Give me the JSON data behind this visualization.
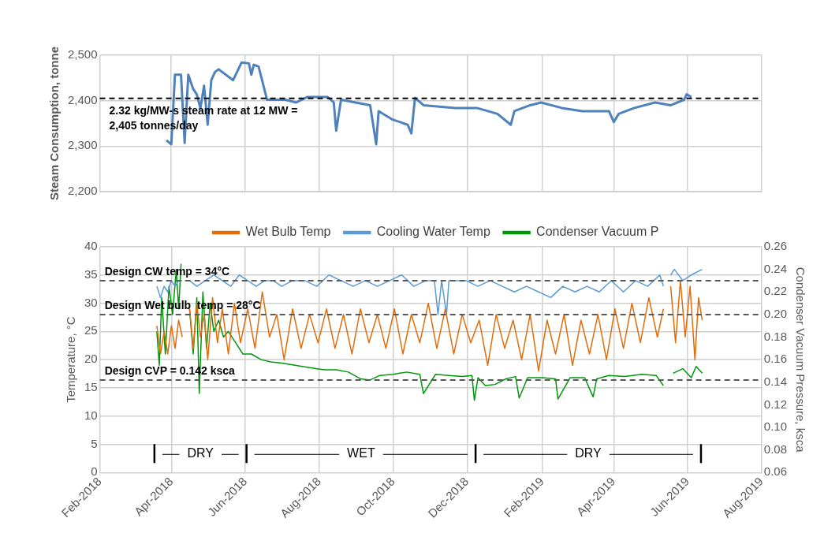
{
  "chart_data": [
    {
      "type": "line",
      "ylabel": "Steam Consumption, tonne",
      "xlim": [
        "2018-02",
        "2019-08"
      ],
      "xticks": [
        {
          "value": "2018-02",
          "label": null
        },
        {
          "value": "2018-04",
          "label": null
        },
        {
          "value": "2018-06",
          "label": null
        },
        {
          "value": "2018-08",
          "label": null
        },
        {
          "value": "2018-10",
          "label": null
        },
        {
          "value": "2018-12",
          "label": null
        },
        {
          "value": "2019-02",
          "label": null
        },
        {
          "value": "2019-04",
          "label": null
        },
        {
          "value": "2019-06",
          "label": null
        },
        {
          "value": "2019-08",
          "label": null
        }
      ],
      "ylim": [
        2200,
        2500
      ],
      "yticks": [
        {
          "value": 2200,
          "label": "2,200"
        },
        {
          "value": 2300,
          "label": "2,300"
        },
        {
          "value": 2400,
          "label": "2,400"
        },
        {
          "value": 2500,
          "label": "2,500"
        }
      ],
      "grid": true,
      "tick_labels": "y",
      "ref_lines": [
        {
          "axis": "y",
          "value": 2405,
          "label": "2.32 kg/MW-s steam rate at 12 MW = 2,405 tonnes/day",
          "color": "#000000",
          "line_style": "dashed"
        }
      ],
      "series": [
        {
          "color": "#4f81bd",
          "x": [
            "2018-03-28",
            "2018-04-01",
            "2018-04-04",
            "2018-04-09",
            "2018-04-12",
            "2018-04-15",
            "2018-04-19",
            "2018-04-22",
            "2018-04-25",
            "2018-04-28",
            "2018-05-01",
            "2018-05-04",
            "2018-05-07",
            "2018-05-10",
            "2018-05-22",
            "2018-05-29",
            "2018-06-04",
            "2018-06-06",
            "2018-06-08",
            "2018-06-12",
            "2018-06-19",
            "2018-07-04",
            "2018-07-13",
            "2018-07-22",
            "2018-08-08",
            "2018-08-13",
            "2018-08-15",
            "2018-08-19",
            "2018-09-12",
            "2018-09-17",
            "2018-09-19",
            "2018-09-30",
            "2018-10-13",
            "2018-10-16",
            "2018-10-19",
            "2018-10-26",
            "2018-11-21",
            "2018-12-09",
            "2018-12-26",
            "2019-01-06",
            "2019-01-09",
            "2019-01-22",
            "2019-01-31",
            "2019-02-17",
            "2019-03-06",
            "2019-03-28",
            "2019-04-01",
            "2019-04-05",
            "2019-04-18",
            "2019-05-05",
            "2019-05-18",
            "2019-05-29",
            "2019-05-31",
            "2019-06-04"
          ],
          "values": [
            2313,
            2304,
            2457,
            2457,
            2307,
            2457,
            2426,
            2414,
            2383,
            2433,
            2347,
            2445,
            2463,
            2469,
            2445,
            2484,
            2482,
            2457,
            2479,
            2475,
            2402,
            2402,
            2396,
            2408,
            2408,
            2396,
            2334,
            2402,
            2390,
            2304,
            2377,
            2359,
            2347,
            2328,
            2406,
            2390,
            2384,
            2384,
            2371,
            2347,
            2377,
            2390,
            2396,
            2384,
            2377,
            2377,
            2353,
            2371,
            2384,
            2396,
            2390,
            2402,
            2414,
            2408
          ]
        }
      ]
    },
    {
      "type": "line",
      "ylabel": "Temperature, °C",
      "y2label": "Condenser Vacuum Pressure, ksca",
      "legend": "top",
      "grid": true,
      "xlim": [
        "2018-02",
        "2019-08"
      ],
      "xticks": [
        {
          "value": "2018-02",
          "label": "Feb-2018"
        },
        {
          "value": "2018-04",
          "label": "Apr-2018"
        },
        {
          "value": "2018-06",
          "label": "Jun-2018"
        },
        {
          "value": "2018-08",
          "label": "Aug-2018"
        },
        {
          "value": "2018-10",
          "label": "Oct-2018"
        },
        {
          "value": "2018-12",
          "label": "Dec-2018"
        },
        {
          "value": "2019-02",
          "label": "Feb-2019"
        },
        {
          "value": "2019-04",
          "label": "Apr-2019"
        },
        {
          "value": "2019-06",
          "label": "Jun-2019"
        },
        {
          "value": "2019-08",
          "label": "Aug-2019"
        }
      ],
      "ylim": [
        0,
        40
      ],
      "yticks": [
        0,
        5,
        10,
        15,
        20,
        25,
        30,
        35,
        40
      ],
      "y2lim": [
        0.06,
        0.26
      ],
      "y2ticks": [
        {
          "value": 0.06,
          "label": "0.06"
        },
        {
          "value": 0.08,
          "label": "0.08"
        },
        {
          "value": 0.1,
          "label": "0.10"
        },
        {
          "value": 0.12,
          "label": "0.12"
        },
        {
          "value": 0.14,
          "label": "0.14"
        },
        {
          "value": 0.16,
          "label": "0.16"
        },
        {
          "value": 0.18,
          "label": "0.18"
        },
        {
          "value": 0.2,
          "label": "0.20"
        },
        {
          "value": 0.22,
          "label": "0.22"
        },
        {
          "value": 0.24,
          "label": "0.24"
        },
        {
          "value": 0.26,
          "label": "0.26"
        }
      ],
      "ref_lines": [
        {
          "axis": "y",
          "value": 34,
          "label": "Design CW temp = 34°C",
          "color": "#595959",
          "line_style": "dashed"
        },
        {
          "axis": "y",
          "value": 28,
          "label": "Design Wet bulb  temp = 28°C",
          "color": "#595959",
          "line_style": "dashed"
        },
        {
          "axis": "y2",
          "value": 0.142,
          "label": "Design CVP = 0.142 ksca",
          "color": "#595959",
          "line_style": "dashed"
        },
        {
          "axis": "x",
          "value": "2018-03-18",
          "color": "#000000"
        },
        {
          "axis": "x",
          "value": "2018-06-02",
          "color": "#000000"
        },
        {
          "axis": "x",
          "value": "2018-12-08",
          "color": "#000000"
        },
        {
          "axis": "x",
          "value": "2019-06-12",
          "color": "#000000"
        }
      ],
      "annotations": [
        "DRY",
        "WET",
        "DRY"
      ],
      "series": [
        {
          "name": "Wet Bulb Temp",
          "color": "#e36c0a",
          "x": [
            "2018-03-20",
            "2018-03-23",
            "2018-03-26",
            "2018-03-29",
            "2018-04-01",
            "2018-04-04",
            "2018-04-07",
            "2018-04-10",
            "2018-04-14",
            "2018-04-16",
            "2018-04-19",
            "2018-04-22",
            "2018-04-25",
            "2018-04-28",
            "2018-05-01",
            "2018-05-05",
            "2018-05-09",
            "2018-05-13",
            "2018-05-18",
            "2018-05-23",
            "2018-05-28",
            "2018-06-03",
            "2018-06-09",
            "2018-06-15",
            "2018-06-21",
            "2018-06-27",
            "2018-07-03",
            "2018-07-10",
            "2018-07-17",
            "2018-07-24",
            "2018-07-31",
            "2018-08-07",
            "2018-08-14",
            "2018-08-21",
            "2018-08-28",
            "2018-09-04",
            "2018-09-11",
            "2018-09-18",
            "2018-09-25",
            "2018-10-02",
            "2018-10-09",
            "2018-10-16",
            "2018-10-23",
            "2018-10-30",
            "2018-11-06",
            "2018-11-13",
            "2018-11-20",
            "2018-11-27",
            "2018-12-04",
            "2018-12-11",
            "2018-12-18",
            "2018-12-25",
            "2019-01-01",
            "2019-01-08",
            "2019-01-15",
            "2019-01-22",
            "2019-01-29",
            "2019-02-05",
            "2019-02-12",
            "2019-02-19",
            "2019-02-26",
            "2019-03-05",
            "2019-03-12",
            "2019-03-19",
            "2019-03-26",
            "2019-04-02",
            "2019-04-09",
            "2019-04-16",
            "2019-04-23",
            "2019-04-30",
            "2019-05-07",
            "2019-05-12",
            "2019-05-15",
            "2019-05-18",
            "2019-05-22",
            "2019-05-26",
            "2019-05-30",
            "2019-06-03",
            "2019-06-07",
            "2019-06-10",
            "2019-06-13"
          ],
          "values": [
            26,
            21,
            25,
            21,
            26,
            22,
            27,
            24,
            null,
            29,
            22,
            30,
            24,
            28,
            20,
            31,
            23,
            29,
            21,
            30,
            23,
            29,
            22,
            32,
            24,
            28,
            20,
            29,
            22,
            28,
            23,
            29,
            22,
            28,
            21,
            29,
            23,
            28,
            22,
            29,
            21,
            28,
            23,
            30,
            22,
            29,
            21,
            28,
            23,
            27,
            19,
            28,
            22,
            27,
            20,
            28,
            18,
            27,
            21,
            28,
            19,
            27,
            21,
            28,
            20,
            29,
            22,
            30,
            23,
            31,
            24,
            29,
            null,
            33,
            23,
            34,
            24,
            33,
            20,
            31,
            27
          ]
        },
        {
          "name": "Cooling Water Temp",
          "color": "#5b9bd5",
          "x": [
            "2018-03-20",
            "2018-03-23",
            "2018-03-26",
            "2018-03-29",
            "2018-04-01",
            "2018-04-04",
            "2018-04-07",
            "2018-04-10",
            "2018-04-14",
            "2018-04-16",
            "2018-04-22",
            "2018-04-29",
            "2018-05-06",
            "2018-05-13",
            "2018-05-20",
            "2018-05-27",
            "2018-06-03",
            "2018-06-10",
            "2018-06-17",
            "2018-06-24",
            "2018-07-01",
            "2018-07-10",
            "2018-07-20",
            "2018-07-30",
            "2018-08-09",
            "2018-08-19",
            "2018-08-29",
            "2018-09-08",
            "2018-09-18",
            "2018-09-28",
            "2018-10-08",
            "2018-10-18",
            "2018-10-28",
            "2018-11-04",
            "2018-11-07",
            "2018-11-10",
            "2018-11-14",
            "2018-11-16",
            "2018-11-20",
            "2018-11-30",
            "2018-12-10",
            "2018-12-20",
            "2018-12-30",
            "2019-01-09",
            "2019-01-19",
            "2019-01-29",
            "2019-02-08",
            "2019-02-18",
            "2019-02-28",
            "2019-03-10",
            "2019-03-20",
            "2019-03-30",
            "2019-04-09",
            "2019-04-19",
            "2019-04-29",
            "2019-05-09",
            "2019-05-12",
            "2019-05-15",
            "2019-05-18",
            "2019-05-21",
            "2019-05-28",
            "2019-06-04",
            "2019-06-13"
          ],
          "values": [
            33,
            31,
            33,
            32,
            34,
            33,
            34,
            34,
            null,
            34,
            33,
            34,
            35,
            34,
            33,
            35,
            34,
            33,
            34,
            34,
            33,
            34,
            34,
            33,
            35,
            34,
            33,
            34,
            33,
            34,
            35,
            33,
            34,
            34,
            28,
            34,
            28,
            34,
            34,
            34,
            33,
            34,
            33,
            32,
            33,
            32,
            31,
            33,
            32,
            33,
            32,
            34,
            32,
            34,
            33,
            35,
            33,
            null,
            35,
            36,
            34,
            35,
            36
          ]
        },
        {
          "name": "Condenser Vacuum P",
          "color": "#00960a",
          "axis": "y2",
          "x": [
            "2018-03-20",
            "2018-03-22",
            "2018-03-24",
            "2018-03-27",
            "2018-03-30",
            "2018-04-02",
            "2018-04-05",
            "2018-04-07",
            "2018-04-09",
            "2018-04-14",
            "2018-04-16",
            "2018-04-19",
            "2018-04-22",
            "2018-04-24",
            "2018-04-27",
            "2018-04-30",
            "2018-05-03",
            "2018-05-06",
            "2018-05-10",
            "2018-05-14",
            "2018-05-18",
            "2018-05-24",
            "2018-05-30",
            "2018-06-06",
            "2018-06-14",
            "2018-06-22",
            "2018-07-01",
            "2018-07-12",
            "2018-07-24",
            "2018-08-05",
            "2018-08-15",
            "2018-08-25",
            "2018-09-04",
            "2018-09-12",
            "2018-09-20",
            "2018-10-01",
            "2018-10-12",
            "2018-10-23",
            "2018-10-26",
            "2018-11-05",
            "2018-11-16",
            "2018-11-27",
            "2018-12-05",
            "2018-12-07",
            "2018-12-10",
            "2018-12-16",
            "2018-12-24",
            "2019-01-02",
            "2019-01-10",
            "2019-01-13",
            "2019-01-20",
            "2019-02-01",
            "2019-02-12",
            "2019-02-14",
            "2019-02-24",
            "2019-03-08",
            "2019-03-15",
            "2019-03-18",
            "2019-03-28",
            "2019-04-10",
            "2019-04-24",
            "2019-05-06",
            "2019-05-12",
            "2019-05-15",
            "2019-05-20",
            "2019-05-28",
            "2019-06-04",
            "2019-06-08",
            "2019-06-13"
          ],
          "values": [
            0.185,
            0.155,
            0.215,
            0.165,
            0.225,
            0.2,
            0.24,
            0.205,
            0.245,
            null,
            0.205,
            0.165,
            0.215,
            0.13,
            0.22,
            0.17,
            0.21,
            0.185,
            0.195,
            0.18,
            0.185,
            0.175,
            0.165,
            0.165,
            0.16,
            0.158,
            0.157,
            0.155,
            0.153,
            0.151,
            0.151,
            0.149,
            0.143,
            0.142,
            0.146,
            0.147,
            0.149,
            0.147,
            0.13,
            0.147,
            0.146,
            0.145,
            0.146,
            0.124,
            0.144,
            0.137,
            0.138,
            0.143,
            0.145,
            0.126,
            0.144,
            0.144,
            0.143,
            0.125,
            0.144,
            0.144,
            0.127,
            0.143,
            0.146,
            0.145,
            0.147,
            0.146,
            0.137,
            null,
            0.148,
            0.152,
            0.144,
            0.154,
            0.148
          ]
        }
      ]
    }
  ]
}
